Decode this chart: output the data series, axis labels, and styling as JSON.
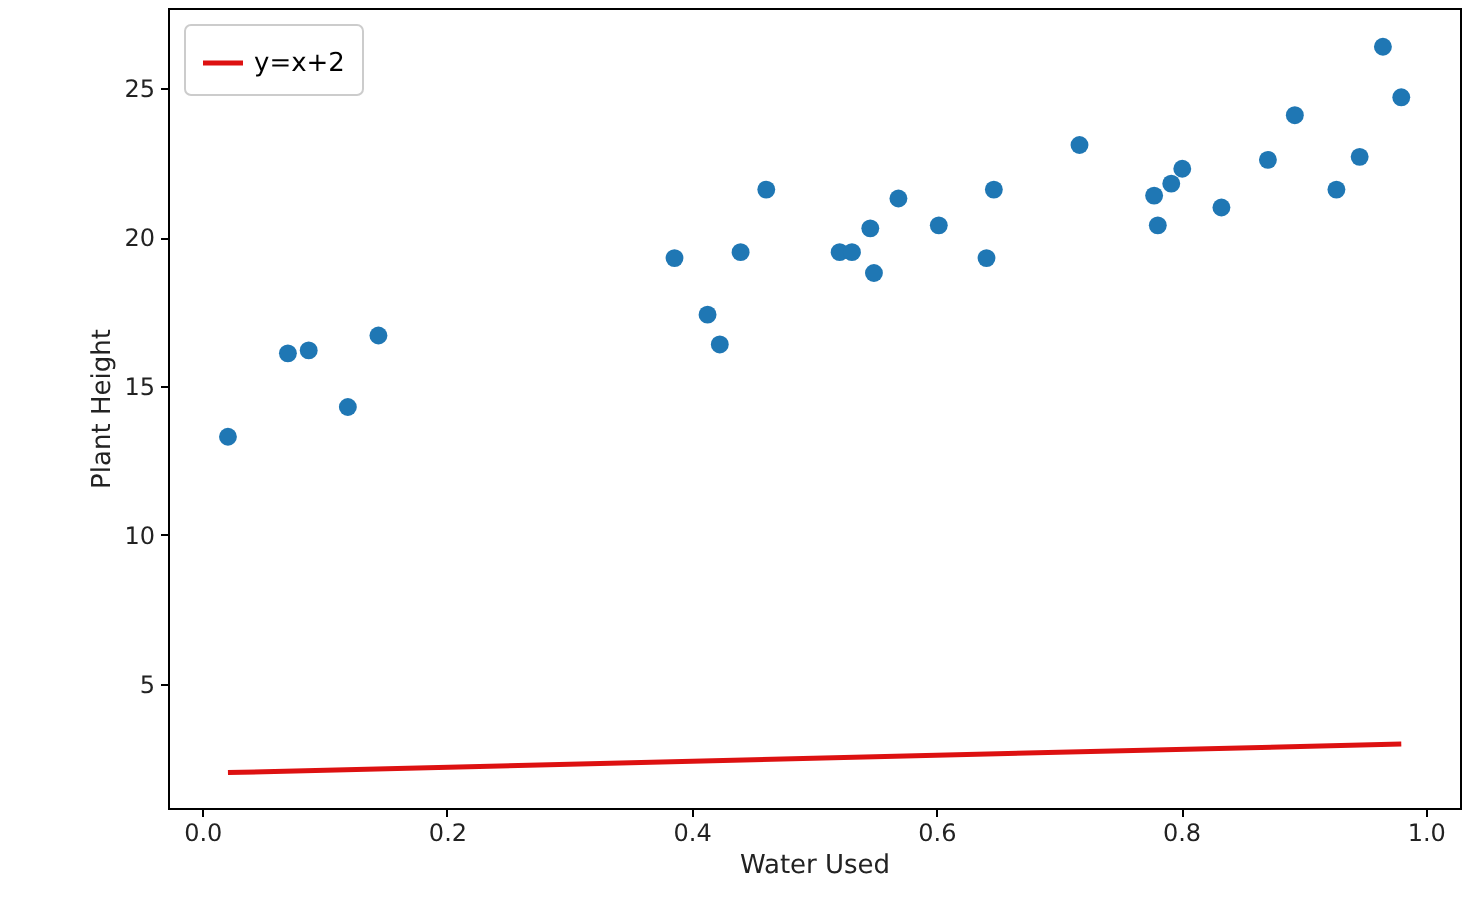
{
  "chart_data": {
    "type": "scatter",
    "xlabel": "Water Used",
    "ylabel": "Plant Height",
    "xlim": [
      -0.028,
      1.028
    ],
    "ylim": [
      0.83,
      27.7
    ],
    "xticks": [
      {
        "value": 0,
        "label": "0.0"
      },
      {
        "value": 0.2,
        "label": "0.2"
      },
      {
        "value": 0.4,
        "label": "0.4"
      },
      {
        "value": 0.6,
        "label": "0.6"
      },
      {
        "value": 0.8,
        "label": "0.8"
      },
      {
        "value": 1,
        "label": "1.0"
      }
    ],
    "yticks": [
      5,
      10,
      15,
      20,
      25
    ],
    "grid": false,
    "legend": "top left",
    "marker": "circle",
    "series": [
      {
        "color": "#1f77b4",
        "x": [
          0.021,
          0.07,
          0.087,
          0.119,
          0.144,
          0.386,
          0.413,
          0.423,
          0.44,
          0.461,
          0.521,
          0.531,
          0.549,
          0.546,
          0.569,
          0.602,
          0.641,
          0.647,
          0.717,
          0.781,
          0.778,
          0.792,
          0.801,
          0.833,
          0.871,
          0.893,
          0.927,
          0.946,
          0.965,
          0.98
        ],
        "values": [
          13.3,
          16.1,
          16.2,
          14.3,
          16.7,
          19.3,
          17.4,
          16.4,
          19.5,
          21.6,
          19.5,
          19.5,
          18.8,
          20.3,
          21.3,
          20.4,
          19.3,
          21.6,
          23.1,
          20.4,
          21.4,
          21.8,
          22.3,
          21.0,
          22.6,
          24.1,
          21.6,
          22.7,
          26.4,
          24.7
        ]
      },
      {
        "type": "line",
        "name": "y=x+2",
        "color": "#dd1111",
        "x": [
          0.021,
          0.98
        ],
        "values": [
          2.02,
          2.98
        ],
        "line_style": "solid",
        "marker": "none"
      }
    ]
  }
}
